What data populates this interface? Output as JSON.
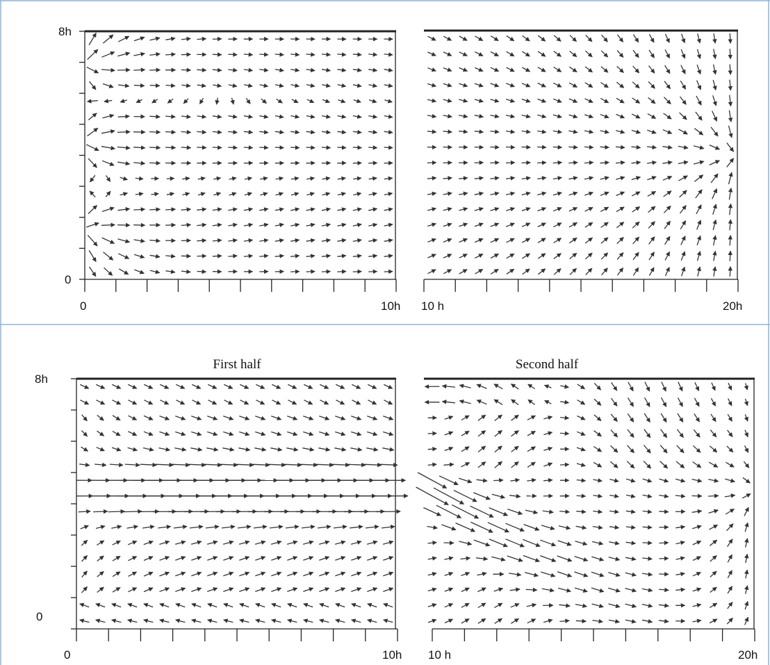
{
  "figure": {
    "colors": {
      "divider": "#8fb4d9",
      "axis": "#222222",
      "arrow": "#333333",
      "background": "#ffffff"
    },
    "panels": [
      {
        "id": "top-left",
        "title": "",
        "y_top_label": "8h",
        "y_bottom_label": "0",
        "x_left_label": "0",
        "x_right_label": "10h",
        "show_y_axis": true
      },
      {
        "id": "top-right",
        "title": "",
        "y_top_label": "",
        "y_bottom_label": "",
        "x_left_label": "10 h",
        "x_right_label": "20h",
        "show_y_axis": false
      },
      {
        "id": "bottom-left",
        "title": "First half",
        "y_top_label": "8h",
        "y_bottom_label": "0",
        "x_left_label": "0",
        "x_right_label": "10h",
        "show_y_axis": true
      },
      {
        "id": "bottom-right",
        "title": "Second half",
        "y_top_label": "",
        "y_bottom_label": "",
        "x_left_label": "10 h",
        "x_right_label": "20h",
        "show_y_axis": false
      }
    ]
  },
  "chart_data": [
    {
      "type": "quiver",
      "panel": "top-left",
      "xlim": [
        0,
        10
      ],
      "ylim": [
        0,
        8
      ],
      "x_tick_labels": [
        "0",
        "10h"
      ],
      "y_tick_labels": [
        "0",
        "8h"
      ],
      "field": "jets from left wall at y = 1.6, 4.4, 7.0 spreading into the domain"
    },
    {
      "type": "quiver",
      "panel": "top-right",
      "xlim": [
        10,
        20
      ],
      "ylim": [
        0,
        8
      ],
      "x_tick_labels": [
        "10 h",
        "20h"
      ],
      "field": "converging flow toward outlet at x = 20, y = 4.0"
    },
    {
      "type": "quiver",
      "panel": "bottom-left",
      "title": "First half",
      "xlim": [
        0,
        10
      ],
      "ylim": [
        0,
        8
      ],
      "x_tick_labels": [
        "0",
        "10h"
      ],
      "y_tick_labels": [
        "0",
        "8h"
      ],
      "field": "strong rightward jet centred near y = 4.4"
    },
    {
      "type": "quiver",
      "panel": "bottom-right",
      "title": "Second half",
      "xlim": [
        10,
        20
      ],
      "ylim": [
        0,
        8
      ],
      "x_tick_labels": [
        "10 h",
        "20h"
      ],
      "field": "jet descending from left toward lower right, exiting at x = 20, y = 4.4"
    }
  ]
}
